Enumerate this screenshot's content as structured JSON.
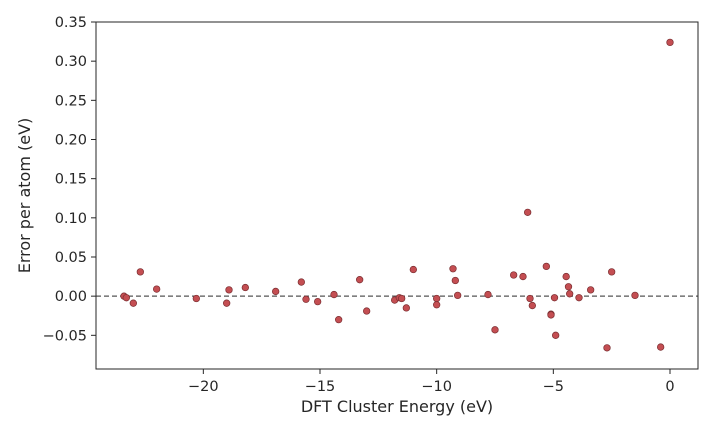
{
  "chart_data": {
    "type": "scatter",
    "title": "",
    "xlabel": "DFT Cluster Energy (eV)",
    "ylabel": "Error per atom (eV)",
    "xlim": [
      -24.6,
      1.2
    ],
    "ylim": [
      -0.093,
      0.35
    ],
    "xticks": [
      -20,
      -15,
      -10,
      -5,
      0
    ],
    "xtick_labels": [
      "−20",
      "−15",
      "−10",
      "−5",
      "0"
    ],
    "yticks": [
      -0.05,
      0.0,
      0.05,
      0.1,
      0.15,
      0.2,
      0.25,
      0.3,
      0.35
    ],
    "ytick_labels": [
      "−0.05",
      "0.00",
      "0.05",
      "0.10",
      "0.15",
      "0.20",
      "0.25",
      "0.30",
      "0.35"
    ],
    "grid": false,
    "reference_line": {
      "y": 0.0,
      "style": "dashed",
      "color": "#555555"
    },
    "marker_color": "#c44e52",
    "marker_edge_color": "#7a2e31",
    "points": [
      {
        "x": -23.4,
        "y": 0.0
      },
      {
        "x": -23.3,
        "y": -0.002
      },
      {
        "x": -23.0,
        "y": -0.009
      },
      {
        "x": -22.7,
        "y": 0.031
      },
      {
        "x": -22.0,
        "y": 0.009
      },
      {
        "x": -20.3,
        "y": -0.003
      },
      {
        "x": -18.9,
        "y": 0.008
      },
      {
        "x": -19.0,
        "y": -0.009
      },
      {
        "x": -18.2,
        "y": 0.011
      },
      {
        "x": -16.9,
        "y": 0.006
      },
      {
        "x": -15.8,
        "y": 0.018
      },
      {
        "x": -15.6,
        "y": -0.004
      },
      {
        "x": -15.1,
        "y": -0.007
      },
      {
        "x": -14.4,
        "y": 0.002
      },
      {
        "x": -14.2,
        "y": -0.03
      },
      {
        "x": -13.3,
        "y": 0.021
      },
      {
        "x": -13.0,
        "y": -0.019
      },
      {
        "x": -11.8,
        "y": -0.005
      },
      {
        "x": -11.6,
        "y": -0.002
      },
      {
        "x": -11.5,
        "y": -0.003
      },
      {
        "x": -11.3,
        "y": -0.015
      },
      {
        "x": -11.0,
        "y": 0.034
      },
      {
        "x": -10.0,
        "y": -0.003
      },
      {
        "x": -10.0,
        "y": -0.011
      },
      {
        "x": -9.3,
        "y": 0.035
      },
      {
        "x": -9.2,
        "y": 0.02
      },
      {
        "x": -9.1,
        "y": 0.001
      },
      {
        "x": -7.8,
        "y": 0.002
      },
      {
        "x": -7.5,
        "y": -0.043
      },
      {
        "x": -6.7,
        "y": 0.027
      },
      {
        "x": -6.3,
        "y": 0.025
      },
      {
        "x": -6.1,
        "y": 0.107
      },
      {
        "x": -6.0,
        "y": -0.003
      },
      {
        "x": -5.9,
        "y": -0.012
      },
      {
        "x": -5.3,
        "y": 0.038
      },
      {
        "x": -5.1,
        "y": -0.023
      },
      {
        "x": -5.1,
        "y": -0.024
      },
      {
        "x": -4.95,
        "y": -0.002
      },
      {
        "x": -4.9,
        "y": -0.05
      },
      {
        "x": -4.45,
        "y": 0.025
      },
      {
        "x": -4.35,
        "y": 0.012
      },
      {
        "x": -4.3,
        "y": 0.003
      },
      {
        "x": -3.9,
        "y": -0.002
      },
      {
        "x": -3.4,
        "y": 0.008
      },
      {
        "x": -2.5,
        "y": 0.031
      },
      {
        "x": -2.7,
        "y": -0.066
      },
      {
        "x": -1.5,
        "y": 0.001
      },
      {
        "x": -0.4,
        "y": -0.065
      },
      {
        "x": 0.0,
        "y": 0.324
      }
    ]
  }
}
